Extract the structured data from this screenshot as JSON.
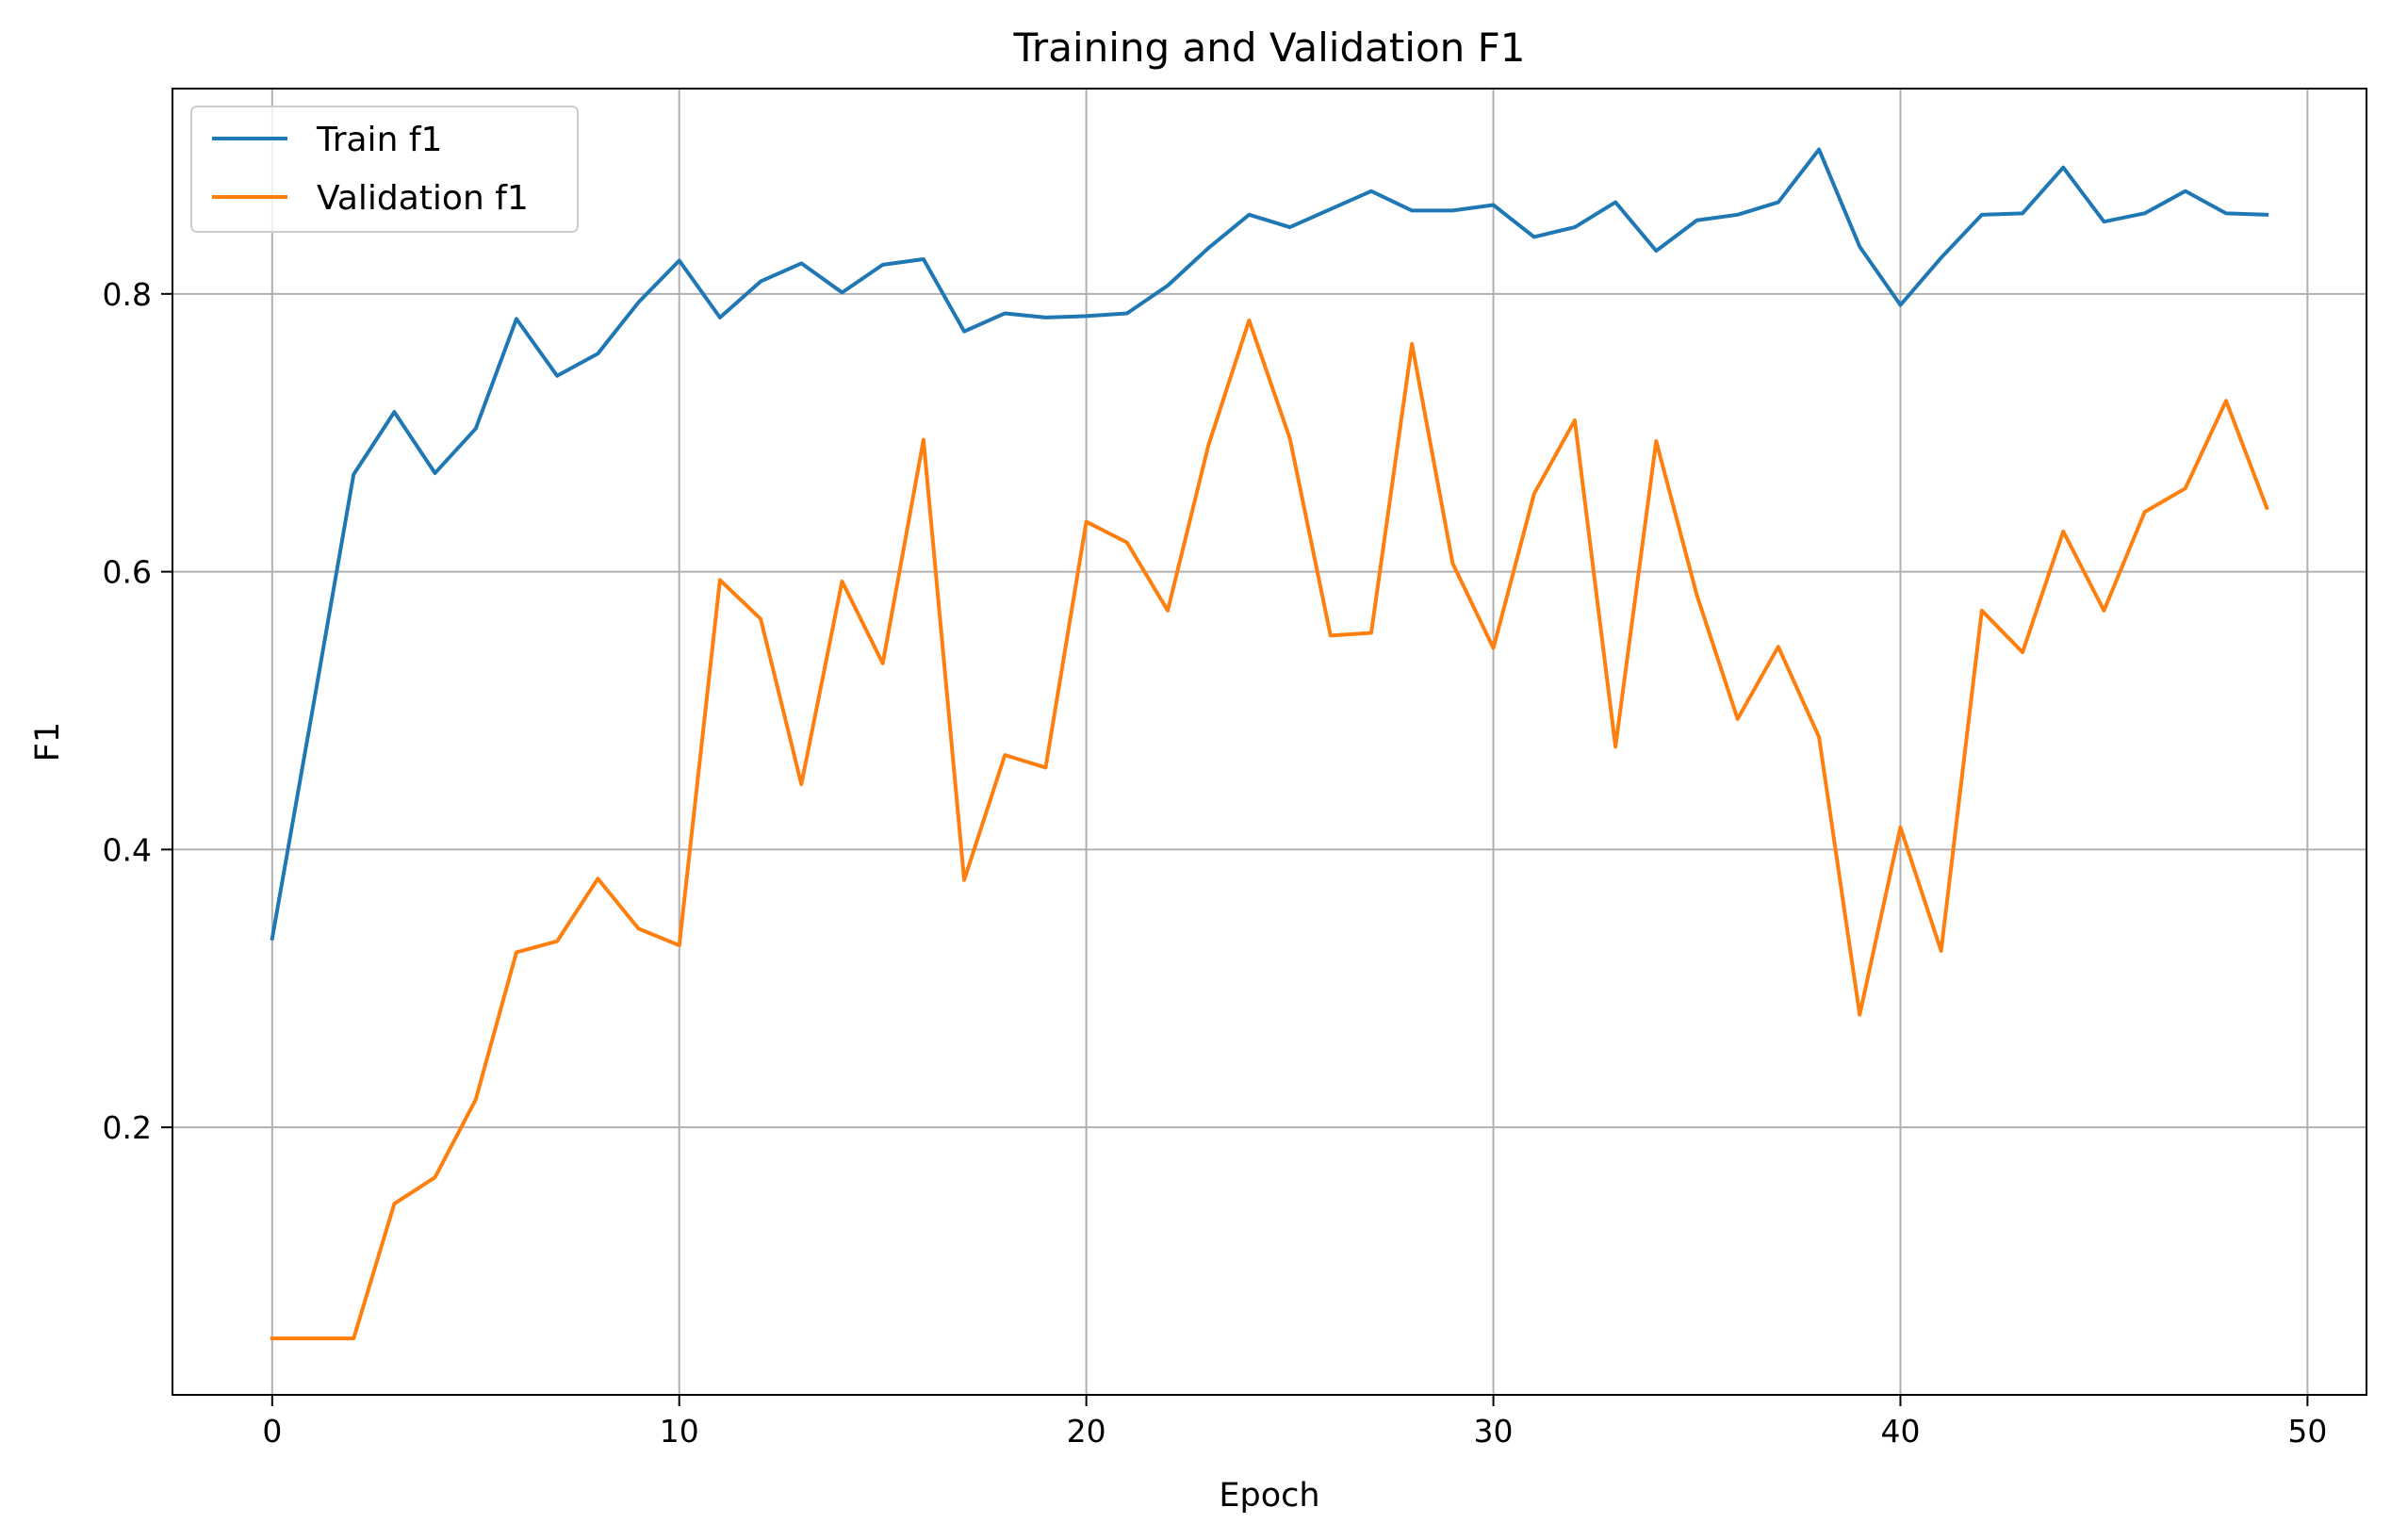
{
  "chart_data": {
    "type": "line",
    "title": "Training and Validation F1",
    "xlabel": "Epoch",
    "ylabel": "F1",
    "xlim": [
      -2.45,
      51.45
    ],
    "ylim": [
      0.0074,
      0.9478
    ],
    "xticks": [
      0,
      10,
      20,
      30,
      40,
      50
    ],
    "yticks": [
      0.2,
      0.4,
      0.6,
      0.8
    ],
    "xtick_labels": [
      "0",
      "10",
      "20",
      "30",
      "40",
      "50"
    ],
    "ytick_labels": [
      "0.2",
      "0.4",
      "0.6",
      "0.8"
    ],
    "grid": true,
    "legend_position": "top-left",
    "x": [
      0,
      1,
      2,
      3,
      4,
      5,
      6,
      7,
      8,
      9,
      10,
      11,
      12,
      13,
      14,
      15,
      16,
      17,
      18,
      19,
      20,
      21,
      22,
      23,
      24,
      25,
      26,
      27,
      28,
      29,
      30,
      31,
      32,
      33,
      34,
      35,
      36,
      37,
      38,
      39,
      40,
      41,
      42,
      43,
      44,
      45,
      46,
      47,
      48,
      49
    ],
    "series": [
      {
        "name": "Train f1",
        "color": "#1f77b4",
        "values": [
          0.336,
          0.502,
          0.67,
          0.715,
          0.671,
          0.703,
          0.782,
          0.741,
          0.757,
          0.794,
          0.824,
          0.783,
          0.809,
          0.822,
          0.801,
          0.821,
          0.825,
          0.773,
          0.786,
          0.783,
          0.784,
          0.786,
          0.806,
          0.833,
          0.857,
          0.848,
          0.861,
          0.874,
          0.86,
          0.86,
          0.864,
          0.841,
          0.848,
          0.866,
          0.831,
          0.853,
          0.857,
          0.866,
          0.904,
          0.834,
          0.792,
          0.826,
          0.857,
          0.858,
          0.891,
          0.852,
          0.858,
          0.874,
          0.858,
          0.857
        ]
      },
      {
        "name": "Validation f1",
        "color": "#ff7f0e",
        "values": [
          0.048,
          0.048,
          0.048,
          0.145,
          0.164,
          0.22,
          0.326,
          0.334,
          0.379,
          0.343,
          0.331,
          0.594,
          0.566,
          0.447,
          0.593,
          0.534,
          0.695,
          0.378,
          0.468,
          0.459,
          0.636,
          0.621,
          0.572,
          0.691,
          0.781,
          0.696,
          0.554,
          0.556,
          0.764,
          0.606,
          0.545,
          0.656,
          0.709,
          0.474,
          0.694,
          0.583,
          0.494,
          0.546,
          0.481,
          0.281,
          0.416,
          0.327,
          0.572,
          0.542,
          0.629,
          0.572,
          0.643,
          0.66,
          0.723,
          0.646
        ]
      }
    ]
  }
}
